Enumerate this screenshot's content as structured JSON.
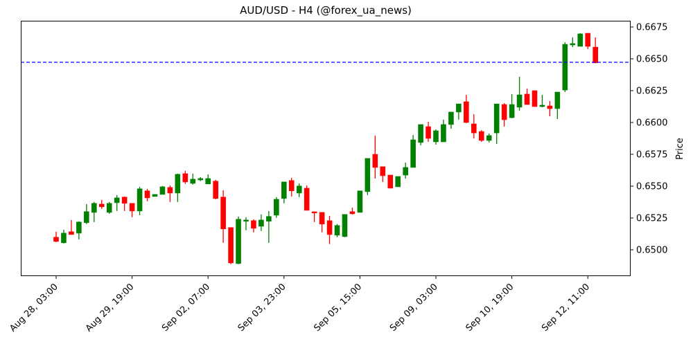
{
  "chart_data": {
    "type": "candlestick",
    "title": "AUD/USD - H4 (@forex_ua_news)",
    "xlabel": "",
    "ylabel": "Price",
    "ylim": [
      0.64845,
      0.66845
    ],
    "y_ticks": [
      0.65,
      0.6525,
      0.655,
      0.6575,
      0.66,
      0.6625,
      0.665,
      0.6675
    ],
    "y_tick_labels": [
      "0.6500",
      "0.6525",
      "0.6550",
      "0.6575",
      "0.6600",
      "0.6625",
      "0.6650",
      "0.6675"
    ],
    "x_tick_labels": [
      "Aug 28, 03:00",
      "Aug 29, 19:00",
      "Sep 02, 07:00",
      "Sep 03, 23:00",
      "Sep 05, 15:00",
      "Sep 09, 03:00",
      "Sep 10, 19:00",
      "Sep 12, 11:00"
    ],
    "x_tick_every_n_candles": 10,
    "grid": false,
    "current_price_line": {
      "value": 0.66473,
      "color": "#0000ff",
      "style": "dashed"
    },
    "colors": {
      "up": "#008000",
      "down": "#ff0000"
    },
    "candles": [
      {
        "o": 0.65099,
        "h": 0.65142,
        "l": 0.6506,
        "c": 0.65066
      },
      {
        "o": 0.65055,
        "h": 0.65158,
        "l": 0.6505,
        "c": 0.65131
      },
      {
        "o": 0.65142,
        "h": 0.65234,
        "l": 0.65126,
        "c": 0.6512
      },
      {
        "o": 0.65131,
        "h": 0.65224,
        "l": 0.65082,
        "c": 0.65218
      },
      {
        "o": 0.65213,
        "h": 0.65359,
        "l": 0.65202,
        "c": 0.653
      },
      {
        "o": 0.65294,
        "h": 0.65376,
        "l": 0.65218,
        "c": 0.65365
      },
      {
        "o": 0.65359,
        "h": 0.65392,
        "l": 0.65321,
        "c": 0.65338
      },
      {
        "o": 0.65294,
        "h": 0.65376,
        "l": 0.65283,
        "c": 0.65365
      },
      {
        "o": 0.6537,
        "h": 0.6543,
        "l": 0.65305,
        "c": 0.65408
      },
      {
        "o": 0.65414,
        "h": 0.65419,
        "l": 0.65305,
        "c": 0.65365
      },
      {
        "o": 0.65365,
        "h": 0.65365,
        "l": 0.65256,
        "c": 0.65305
      },
      {
        "o": 0.65305,
        "h": 0.65495,
        "l": 0.65272,
        "c": 0.65479
      },
      {
        "o": 0.65463,
        "h": 0.65479,
        "l": 0.65381,
        "c": 0.65408
      },
      {
        "o": 0.65419,
        "h": 0.65435,
        "l": 0.65419,
        "c": 0.65435
      },
      {
        "o": 0.65435,
        "h": 0.65501,
        "l": 0.65435,
        "c": 0.65495
      },
      {
        "o": 0.6549,
        "h": 0.65506,
        "l": 0.65376,
        "c": 0.65446
      },
      {
        "o": 0.65446,
        "h": 0.65598,
        "l": 0.65376,
        "c": 0.65593
      },
      {
        "o": 0.65598,
        "h": 0.6562,
        "l": 0.65517,
        "c": 0.65533
      },
      {
        "o": 0.65522,
        "h": 0.65598,
        "l": 0.65512,
        "c": 0.65555
      },
      {
        "o": 0.65549,
        "h": 0.65571,
        "l": 0.65539,
        "c": 0.6556
      },
      {
        "o": 0.65517,
        "h": 0.65593,
        "l": 0.65517,
        "c": 0.6556
      },
      {
        "o": 0.65539,
        "h": 0.6555,
        "l": 0.65397,
        "c": 0.65403
      },
      {
        "o": 0.65414,
        "h": 0.65468,
        "l": 0.65055,
        "c": 0.65164
      },
      {
        "o": 0.65175,
        "h": 0.65175,
        "l": 0.64887,
        "c": 0.64897
      },
      {
        "o": 0.64892,
        "h": 0.65262,
        "l": 0.64887,
        "c": 0.6524
      },
      {
        "o": 0.65224,
        "h": 0.65256,
        "l": 0.65153,
        "c": 0.65234
      },
      {
        "o": 0.65229,
        "h": 0.6524,
        "l": 0.65137,
        "c": 0.65169
      },
      {
        "o": 0.65185,
        "h": 0.65278,
        "l": 0.65148,
        "c": 0.65234
      },
      {
        "o": 0.65224,
        "h": 0.65305,
        "l": 0.65055,
        "c": 0.65262
      },
      {
        "o": 0.65272,
        "h": 0.65414,
        "l": 0.65251,
        "c": 0.65397
      },
      {
        "o": 0.65403,
        "h": 0.65533,
        "l": 0.65365,
        "c": 0.65533
      },
      {
        "o": 0.65544,
        "h": 0.65566,
        "l": 0.65419,
        "c": 0.65463
      },
      {
        "o": 0.65446,
        "h": 0.65522,
        "l": 0.65414,
        "c": 0.65501
      },
      {
        "o": 0.65484,
        "h": 0.65506,
        "l": 0.6531,
        "c": 0.6531
      },
      {
        "o": 0.65299,
        "h": 0.65299,
        "l": 0.65218,
        "c": 0.65289
      },
      {
        "o": 0.65294,
        "h": 0.65294,
        "l": 0.65137,
        "c": 0.65202
      },
      {
        "o": 0.65229,
        "h": 0.65267,
        "l": 0.65045,
        "c": 0.6512
      },
      {
        "o": 0.65115,
        "h": 0.65202,
        "l": 0.65099,
        "c": 0.65191
      },
      {
        "o": 0.65104,
        "h": 0.65278,
        "l": 0.65099,
        "c": 0.65278
      },
      {
        "o": 0.653,
        "h": 0.65332,
        "l": 0.65277,
        "c": 0.65283
      },
      {
        "o": 0.65294,
        "h": 0.65463,
        "l": 0.65294,
        "c": 0.65463
      },
      {
        "o": 0.65457,
        "h": 0.65718,
        "l": 0.6543,
        "c": 0.65718
      },
      {
        "o": 0.6575,
        "h": 0.65897,
        "l": 0.6556,
        "c": 0.65647
      },
      {
        "o": 0.65653,
        "h": 0.65653,
        "l": 0.65533,
        "c": 0.65582
      },
      {
        "o": 0.65587,
        "h": 0.65587,
        "l": 0.65484,
        "c": 0.65484
      },
      {
        "o": 0.65495,
        "h": 0.65576,
        "l": 0.65495,
        "c": 0.65576
      },
      {
        "o": 0.65587,
        "h": 0.65685,
        "l": 0.6556,
        "c": 0.65647
      },
      {
        "o": 0.65647,
        "h": 0.65902,
        "l": 0.65647,
        "c": 0.65864
      },
      {
        "o": 0.65843,
        "h": 0.65984,
        "l": 0.65821,
        "c": 0.65984
      },
      {
        "o": 0.65967,
        "h": 0.66006,
        "l": 0.65848,
        "c": 0.65875
      },
      {
        "o": 0.65848,
        "h": 0.65946,
        "l": 0.65826,
        "c": 0.65935
      },
      {
        "o": 0.65848,
        "h": 0.66022,
        "l": 0.65848,
        "c": 0.65984
      },
      {
        "o": 0.65984,
        "h": 0.66071,
        "l": 0.65951,
        "c": 0.66082
      },
      {
        "o": 0.66082,
        "h": 0.66146,
        "l": 0.66022,
        "c": 0.66146
      },
      {
        "o": 0.66163,
        "h": 0.66217,
        "l": 0.65995,
        "c": 0.66
      },
      {
        "o": 0.65989,
        "h": 0.66065,
        "l": 0.65875,
        "c": 0.65918
      },
      {
        "o": 0.65929,
        "h": 0.6594,
        "l": 0.65848,
        "c": 0.65859
      },
      {
        "o": 0.65859,
        "h": 0.65913,
        "l": 0.65843,
        "c": 0.65897
      },
      {
        "o": 0.65918,
        "h": 0.66146,
        "l": 0.65832,
        "c": 0.66146
      },
      {
        "o": 0.66141,
        "h": 0.66152,
        "l": 0.65968,
        "c": 0.66022
      },
      {
        "o": 0.66038,
        "h": 0.66223,
        "l": 0.66033,
        "c": 0.66141
      },
      {
        "o": 0.6612,
        "h": 0.66359,
        "l": 0.66093,
        "c": 0.66217
      },
      {
        "o": 0.66223,
        "h": 0.66266,
        "l": 0.66141,
        "c": 0.66141
      },
      {
        "o": 0.6625,
        "h": 0.6625,
        "l": 0.66125,
        "c": 0.66125
      },
      {
        "o": 0.66125,
        "h": 0.66217,
        "l": 0.6612,
        "c": 0.66136
      },
      {
        "o": 0.6613,
        "h": 0.66168,
        "l": 0.66049,
        "c": 0.66109
      },
      {
        "o": 0.66109,
        "h": 0.66239,
        "l": 0.66027,
        "c": 0.66239
      },
      {
        "o": 0.66255,
        "h": 0.6663,
        "l": 0.66239,
        "c": 0.66614
      },
      {
        "o": 0.66609,
        "h": 0.66668,
        "l": 0.66592,
        "c": 0.6662
      },
      {
        "o": 0.66598,
        "h": 0.66701,
        "l": 0.66598,
        "c": 0.66696
      },
      {
        "o": 0.66701,
        "h": 0.66701,
        "l": 0.66576,
        "c": 0.66598
      },
      {
        "o": 0.66592,
        "h": 0.66668,
        "l": 0.66468,
        "c": 0.66468
      }
    ]
  },
  "header": {
    "title": "AUD/USD - H4 (@forex_ua_news)"
  }
}
